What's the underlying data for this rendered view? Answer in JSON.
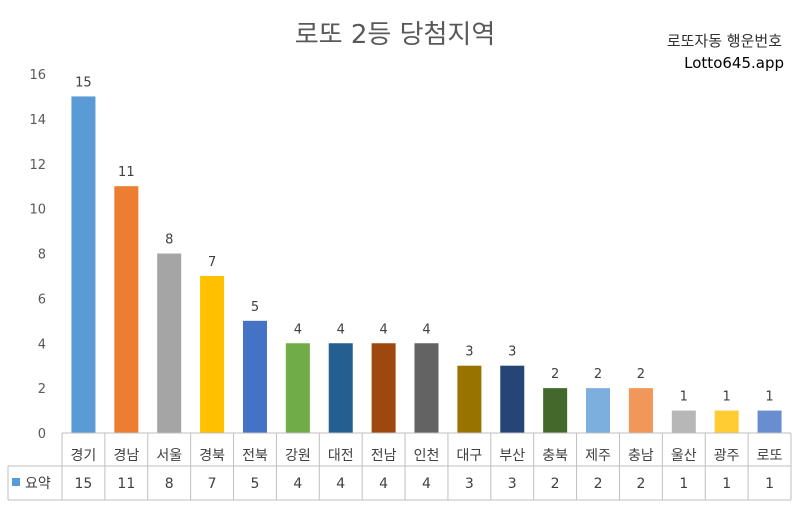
{
  "title": "로또 2등 당첨지역",
  "subtitle_line1": "로또자동 행운번호",
  "subtitle_line2": "Lotto645.app",
  "chart_data": {
    "type": "bar",
    "title": "로또 2등 당첨지역",
    "categories": [
      "경기",
      "경남",
      "서울",
      "경북",
      "전북",
      "강원",
      "대전",
      "전남",
      "인천",
      "대구",
      "부산",
      "충북",
      "제주",
      "충남",
      "울산",
      "광주",
      "로또"
    ],
    "series": [
      {
        "name": "요약",
        "values": [
          15,
          11,
          8,
          7,
          5,
          4,
          4,
          4,
          4,
          3,
          3,
          2,
          2,
          2,
          1,
          1,
          1
        ]
      }
    ],
    "colors": [
      "#5B9BD5",
      "#ED7D31",
      "#A5A5A5",
      "#FFC000",
      "#4472C4",
      "#70AD47",
      "#255E91",
      "#9E480E",
      "#636363",
      "#997300",
      "#264478",
      "#43682B",
      "#7CAFDD",
      "#F1975A",
      "#B7B7B7",
      "#FFCD33",
      "#698ED0"
    ],
    "legend_color": "#5B9BD5",
    "ylim": [
      0,
      16
    ],
    "yticks": [
      0,
      2,
      4,
      6,
      8,
      10,
      12,
      14,
      16
    ],
    "grid": false,
    "data_table": true,
    "xlabel": "",
    "ylabel": ""
  }
}
